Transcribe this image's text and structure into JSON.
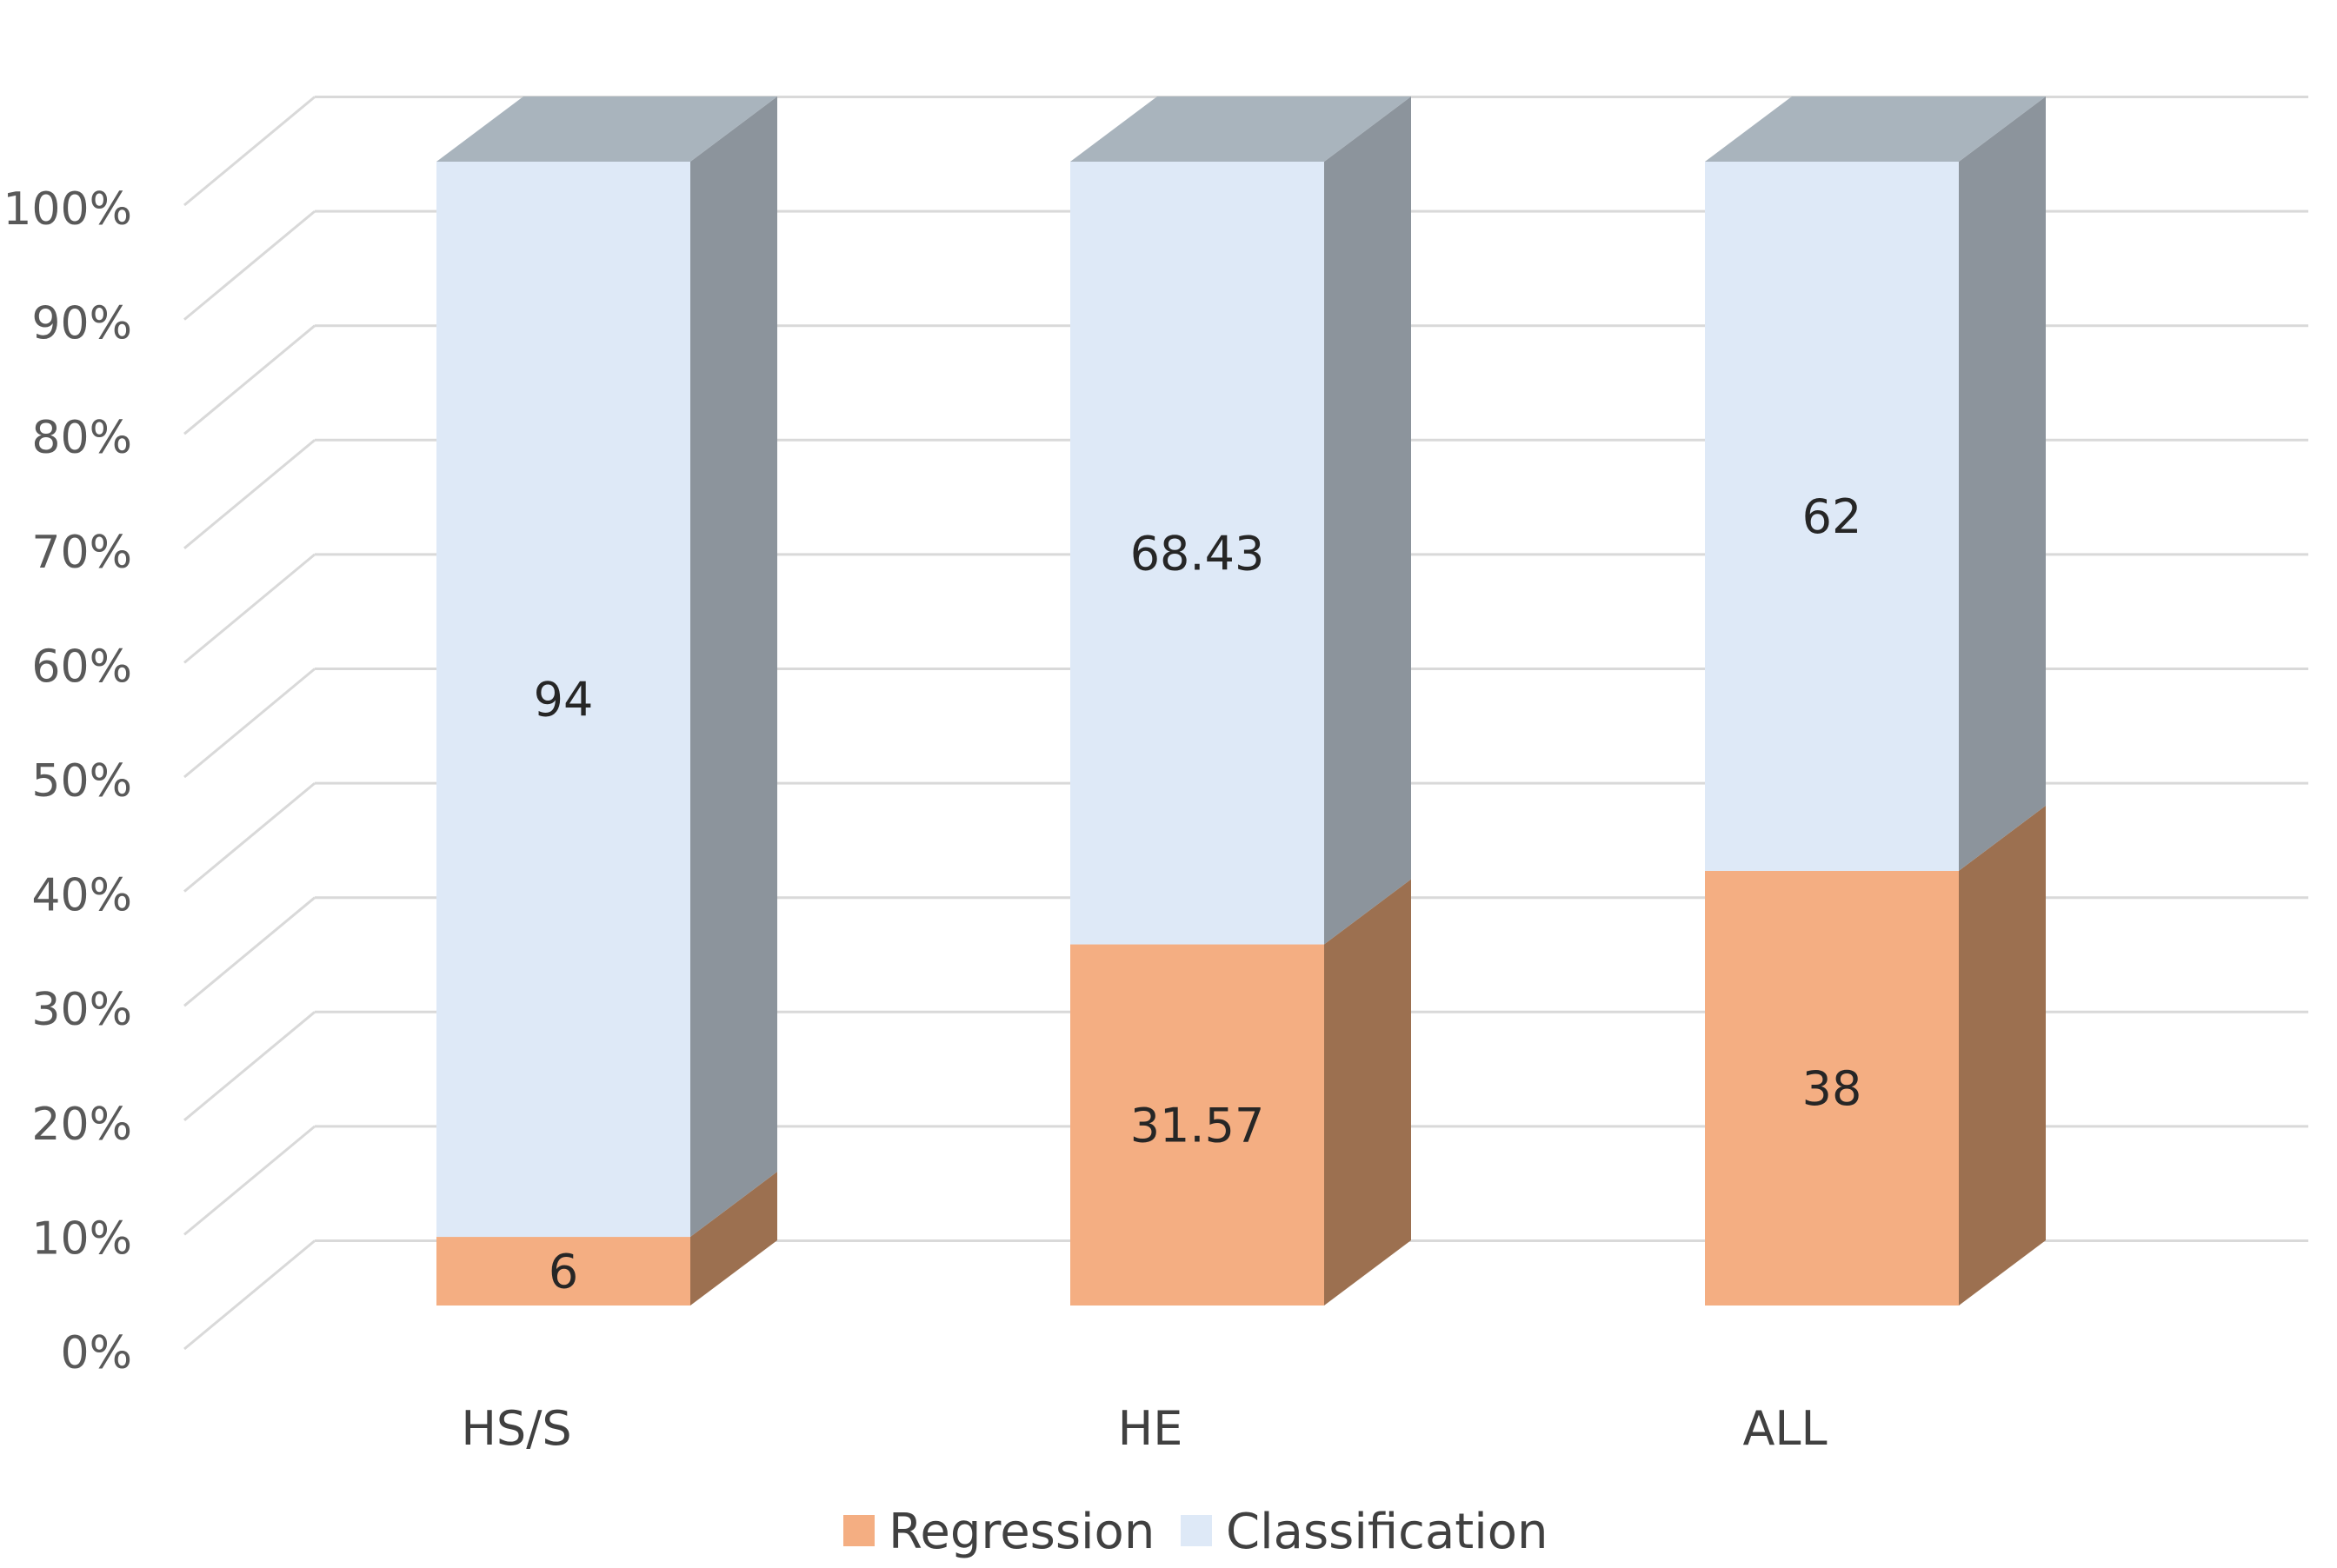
{
  "chart_data": {
    "type": "bar",
    "stacked": true,
    "style": "3d-stacked-column-100-percent",
    "title": "",
    "xlabel": "",
    "ylabel": "",
    "categories": [
      "HS/S",
      "HE",
      "ALL"
    ],
    "series": [
      {
        "name": "Regression",
        "values": [
          6,
          31.57,
          38
        ],
        "labels": [
          "6",
          "31.57",
          "38"
        ],
        "color": "#F4AE82",
        "side_color": "#9C7050"
      },
      {
        "name": "Classification",
        "values": [
          94,
          68.43,
          62
        ],
        "labels": [
          "94",
          "68.43",
          "62"
        ],
        "color": "#DEE9F7",
        "side_color": "#8C949C"
      }
    ],
    "top_color": "#A9B4BD",
    "ylim": [
      0,
      100
    ],
    "yticks": [
      0,
      10,
      20,
      30,
      40,
      50,
      60,
      70,
      80,
      90,
      100
    ],
    "ytick_labels": [
      "0%",
      "10%",
      "20%",
      "30%",
      "40%",
      "50%",
      "60%",
      "70%",
      "80%",
      "90%",
      "100%"
    ],
    "grid": true,
    "grid_color": "#D9D9D9",
    "legend": {
      "position": "bottom-center",
      "entries": [
        "Regression",
        "Classification"
      ]
    }
  }
}
